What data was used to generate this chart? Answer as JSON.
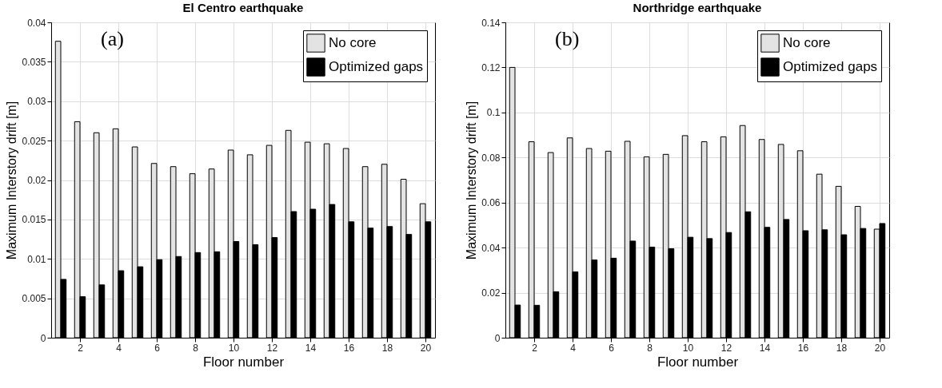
{
  "chart_data": [
    {
      "type": "bar",
      "title": "El Centro earthquake",
      "xlabel": "Floor number",
      "ylabel": "Maximum Interstory drift [m]",
      "annotations": [
        "(a)"
      ],
      "x": [
        1,
        2,
        3,
        4,
        5,
        6,
        7,
        8,
        9,
        10,
        11,
        12,
        13,
        14,
        15,
        16,
        17,
        18,
        19,
        20
      ],
      "xlim": [
        0.5,
        20.5
      ],
      "xticks": [
        2,
        4,
        6,
        8,
        10,
        12,
        14,
        16,
        18,
        20
      ],
      "ylim": [
        0,
        0.04
      ],
      "yticks": [
        0,
        0.005,
        0.01,
        0.015,
        0.02,
        0.025,
        0.03,
        0.035,
        0.04
      ],
      "grid": true,
      "legend": "top right",
      "series": [
        {
          "name": "No core",
          "color": "#e3e3e3",
          "values": [
            0.0376,
            0.0274,
            0.026,
            0.0265,
            0.0242,
            0.0221,
            0.0217,
            0.0208,
            0.0214,
            0.0238,
            0.0232,
            0.0244,
            0.0263,
            0.0248,
            0.0246,
            0.024,
            0.0217,
            0.022,
            0.0201,
            0.017
          ]
        },
        {
          "name": "Optimized gaps",
          "color": "#000000",
          "values": [
            0.0074,
            0.0052,
            0.0067,
            0.0085,
            0.009,
            0.0099,
            0.0103,
            0.0108,
            0.0109,
            0.0122,
            0.0118,
            0.0127,
            0.016,
            0.0163,
            0.0169,
            0.0147,
            0.0139,
            0.0141,
            0.0131,
            0.0147
          ]
        }
      ]
    },
    {
      "type": "bar",
      "title": "Northridge earthquake",
      "xlabel": "Floor number",
      "ylabel": "Maximum Interstory drift [m]",
      "annotations": [
        "(b)"
      ],
      "x": [
        1,
        2,
        3,
        4,
        5,
        6,
        7,
        8,
        9,
        10,
        11,
        12,
        13,
        14,
        15,
        16,
        17,
        18,
        19,
        20
      ],
      "xlim": [
        0.5,
        20.5
      ],
      "xticks": [
        2,
        4,
        6,
        8,
        10,
        12,
        14,
        16,
        18,
        20
      ],
      "ylim": [
        0,
        0.14
      ],
      "yticks": [
        0,
        0.02,
        0.04,
        0.06,
        0.08,
        0.1,
        0.12,
        0.14
      ],
      "grid": true,
      "legend": "top right",
      "series": [
        {
          "name": "No core",
          "color": "#e3e3e3",
          "values": [
            0.12,
            0.087,
            0.0822,
            0.0887,
            0.084,
            0.0828,
            0.0872,
            0.0803,
            0.0814,
            0.0897,
            0.087,
            0.0892,
            0.0942,
            0.088,
            0.0858,
            0.083,
            0.0726,
            0.0672,
            0.0583,
            0.0482
          ]
        },
        {
          "name": "Optimized gaps",
          "color": "#000000",
          "values": [
            0.0145,
            0.0144,
            0.0204,
            0.0292,
            0.0345,
            0.0353,
            0.0429,
            0.0402,
            0.0395,
            0.0446,
            0.044,
            0.0467,
            0.0559,
            0.049,
            0.0525,
            0.0475,
            0.0479,
            0.0457,
            0.0485,
            0.0507
          ]
        }
      ]
    }
  ]
}
